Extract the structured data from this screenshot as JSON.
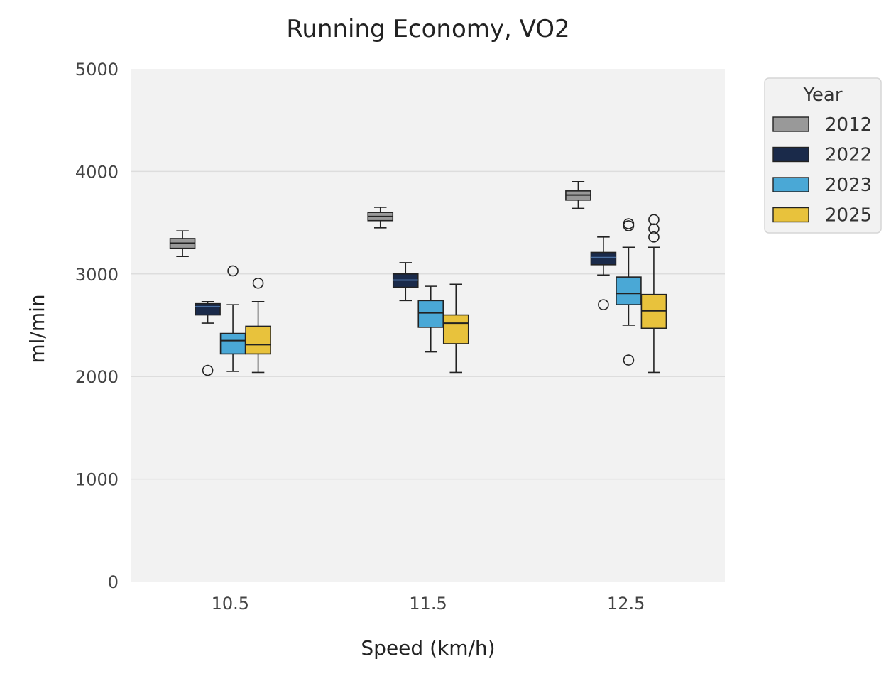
{
  "chart_data": {
    "type": "box",
    "title": "Running Economy, VO2",
    "xlabel": "Speed (km/h)",
    "ylabel": "ml/min",
    "ylim": [
      0,
      5000
    ],
    "yticks": [
      0,
      1000,
      2000,
      3000,
      4000,
      5000
    ],
    "categories": [
      "10.5",
      "11.5",
      "12.5"
    ],
    "grid": "horizontal",
    "legend": {
      "title": "Year",
      "placement": "outside-top-right"
    },
    "series": [
      {
        "name": "2012",
        "color": "#999999",
        "boxes": [
          {
            "whislo": 3170,
            "q1": 3250,
            "med": 3300,
            "q3": 3345,
            "whishi": 3420,
            "fliers": []
          },
          {
            "whislo": 3450,
            "q1": 3520,
            "med": 3560,
            "q3": 3600,
            "whishi": 3650,
            "fliers": []
          },
          {
            "whislo": 3640,
            "q1": 3720,
            "med": 3770,
            "q3": 3810,
            "whishi": 3900,
            "fliers": []
          }
        ]
      },
      {
        "name": "2022",
        "color": "#1a2a4a",
        "boxes": [
          {
            "whislo": 2520,
            "q1": 2600,
            "med": 2680,
            "q3": 2710,
            "whishi": 2730,
            "fliers": [
              2060
            ]
          },
          {
            "whislo": 2740,
            "q1": 2870,
            "med": 2940,
            "q3": 3000,
            "whishi": 3110,
            "fliers": []
          },
          {
            "whislo": 2990,
            "q1": 3090,
            "med": 3160,
            "q3": 3210,
            "whishi": 3360,
            "fliers": [
              2700
            ]
          }
        ]
      },
      {
        "name": "2023",
        "color": "#4aa8d6",
        "boxes": [
          {
            "whislo": 2050,
            "q1": 2220,
            "med": 2350,
            "q3": 2420,
            "whishi": 2700,
            "fliers": [
              3030
            ]
          },
          {
            "whislo": 2240,
            "q1": 2480,
            "med": 2620,
            "q3": 2740,
            "whishi": 2880,
            "fliers": []
          },
          {
            "whislo": 2500,
            "q1": 2700,
            "med": 2810,
            "q3": 2970,
            "whishi": 3260,
            "fliers": [
              3470,
              3490,
              2160
            ]
          }
        ]
      },
      {
        "name": "2025",
        "color": "#e8c23c",
        "boxes": [
          {
            "whislo": 2040,
            "q1": 2220,
            "med": 2310,
            "q3": 2490,
            "whishi": 2730,
            "fliers": [
              2910
            ]
          },
          {
            "whislo": 2040,
            "q1": 2320,
            "med": 2520,
            "q3": 2600,
            "whishi": 2900,
            "fliers": []
          },
          {
            "whislo": 2040,
            "q1": 2470,
            "med": 2640,
            "q3": 2800,
            "whishi": 3260,
            "fliers": [
              3360,
              3440,
              3530
            ]
          }
        ]
      }
    ]
  }
}
